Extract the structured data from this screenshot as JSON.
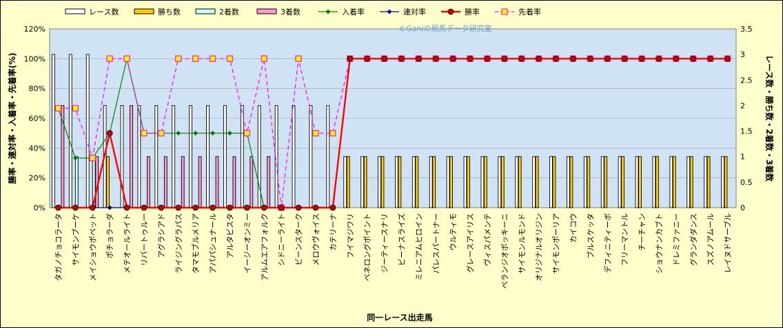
{
  "chart_data": {
    "type": "bar",
    "watermark": "©Ganiの競馬データ研究室",
    "xlabel": "同一レース出走馬",
    "ylabel_left": "勝率・連対率・入着率・先着率(%)",
    "ylabel_right": "レース数・勝ち数・2着数・3着数",
    "ylim_left": [
      0,
      120
    ],
    "ylim_right": [
      0,
      3.5
    ],
    "yticks_left": [
      "0%",
      "20%",
      "40%",
      "60%",
      "80%",
      "100%",
      "120%"
    ],
    "yticks_right": [
      "0",
      "0.5",
      "1",
      "1.5",
      "2",
      "2.5",
      "3",
      "3.5"
    ],
    "grid": true,
    "legend_position": "top",
    "categories": [
      "タガノチョコラータ",
      "サイモンブーケ",
      "メイショウポペット",
      "ポチョラーダ",
      "メテオールライト",
      "リバートゥルー",
      "アグラシアド",
      "ライジングラパス",
      "タマモブルメリア",
      "アパパシュナール",
      "アルタビスタ",
      "イージーオンミー",
      "アルムエアフォルク",
      "シドニーライト",
      "ビーンスターク",
      "メロウヴォイス",
      "カテリーナ",
      "フイマジワリ",
      "ベネロングポイント",
      "ジーティースナリ",
      "ビーナスライズ",
      "ミレニアムヒロイン",
      "パレスパートナー",
      "ウルティモ",
      "グレースアイリス",
      "ヴィスパメンテ",
      "ベランジオボッキーニ",
      "サイモンルモンド",
      "オリジナルオリジン",
      "サイモンポーリア",
      "カイコウ",
      "ブルスケッタ",
      "デフィニティーボ",
      "フリーマントル",
      "チーチャン",
      "ショウナンカブト",
      "ドレミファニー",
      "グランダダンス",
      "スズノアムール",
      "レイヌドサーブル"
    ],
    "bar_series": [
      {
        "name": "レース数",
        "color": "#ffffff",
        "values": [
          3,
          3,
          3,
          2,
          2,
          2,
          2,
          2,
          2,
          2,
          2,
          2,
          2,
          2,
          2,
          2,
          2,
          1,
          1,
          1,
          1,
          1,
          1,
          1,
          1,
          1,
          1,
          1,
          1,
          1,
          1,
          1,
          1,
          1,
          1,
          1,
          1,
          1,
          1,
          1
        ]
      },
      {
        "name": "勝ち数",
        "color": "#ffcc00",
        "values": [
          0,
          0,
          0,
          1,
          0,
          0,
          0,
          0,
          0,
          0,
          0,
          0,
          0,
          0,
          0,
          0,
          0,
          1,
          1,
          1,
          1,
          1,
          1,
          1,
          1,
          1,
          1,
          1,
          1,
          1,
          1,
          1,
          1,
          1,
          1,
          1,
          1,
          1,
          1,
          1
        ]
      },
      {
        "name": "2着数",
        "color": "#ccffff",
        "values": [
          0,
          1,
          1,
          0,
          0,
          0,
          0,
          0,
          0,
          0,
          0,
          0,
          0,
          0,
          0,
          0,
          0,
          0,
          0,
          0,
          0,
          0,
          0,
          0,
          0,
          0,
          0,
          0,
          0,
          0,
          0,
          0,
          0,
          0,
          0,
          0,
          0,
          0,
          0,
          0
        ]
      },
      {
        "name": "3着数",
        "color": "#ff99cc",
        "values": [
          2,
          0,
          1,
          0,
          2,
          1,
          1,
          1,
          1,
          1,
          1,
          1,
          1,
          0,
          0,
          0,
          0,
          0,
          0,
          0,
          0,
          0,
          0,
          0,
          0,
          0,
          0,
          0,
          0,
          0,
          0,
          0,
          0,
          0,
          0,
          0,
          0,
          0,
          0,
          0
        ]
      }
    ],
    "line_series": [
      {
        "name": "入着率",
        "color": "#008000",
        "marker": "diamond",
        "values": [
          66.7,
          33.3,
          33.3,
          50,
          100,
          50,
          50,
          50,
          50,
          50,
          50,
          50,
          0,
          0,
          0,
          0,
          0,
          null,
          null,
          null,
          null,
          null,
          null,
          null,
          null,
          null,
          null,
          null,
          null,
          null,
          null,
          null,
          null,
          null,
          null,
          null,
          null,
          null,
          null,
          null
        ]
      },
      {
        "name": "連対率",
        "color": "#000080",
        "marker": "diamond",
        "values": [
          0,
          0,
          0,
          0,
          0,
          0,
          0,
          0,
          0,
          0,
          0,
          0,
          0,
          0,
          0,
          0,
          0,
          null,
          null,
          null,
          null,
          null,
          null,
          null,
          null,
          null,
          null,
          null,
          null,
          null,
          null,
          null,
          null,
          null,
          null,
          null,
          null,
          null,
          null,
          null
        ]
      },
      {
        "name": "勝率",
        "color": "#ff0000",
        "marker": "circle",
        "values": [
          0,
          0,
          0,
          50,
          0,
          0,
          0,
          0,
          0,
          0,
          0,
          0,
          0,
          0,
          0,
          0,
          0,
          100,
          100,
          100,
          100,
          100,
          100,
          100,
          100,
          100,
          100,
          100,
          100,
          100,
          100,
          100,
          100,
          100,
          100,
          100,
          100,
          100,
          100,
          100
        ]
      },
      {
        "name": "先着率",
        "color": "#ff00ff",
        "marker": "square",
        "dashed": true,
        "values": [
          66.7,
          66.7,
          33.3,
          100,
          100,
          50,
          50,
          100,
          100,
          100,
          100,
          50,
          100,
          0,
          100,
          50,
          50,
          100,
          100,
          100,
          100,
          100,
          100,
          100,
          100,
          100,
          100,
          100,
          100,
          100,
          100,
          100,
          100,
          100,
          100,
          100,
          100,
          100,
          100,
          100
        ]
      }
    ]
  }
}
